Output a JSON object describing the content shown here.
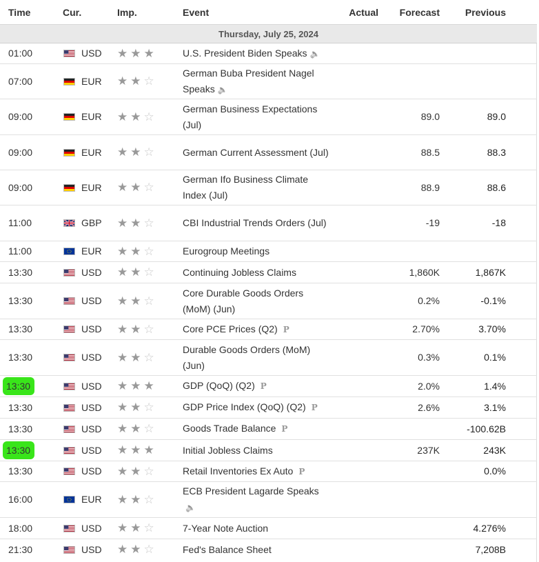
{
  "headers": {
    "time": "Time",
    "cur": "Cur.",
    "imp": "Imp.",
    "event": "Event",
    "actual": "Actual",
    "forecast": "Forecast",
    "previous": "Previous"
  },
  "day": "Thursday, July 25, 2024",
  "highlight_color": "#39e51a",
  "rows": [
    {
      "time": "01:00",
      "cur": "USD",
      "flag": "us-flag-icon",
      "stars": 3,
      "event": "U.S. President Biden Speaks",
      "icon": "speaker-icon",
      "actual": "",
      "forecast": "",
      "previous": "",
      "h": 30
    },
    {
      "time": "07:00",
      "cur": "EUR",
      "flag": "de-flag-icon",
      "stars": 2,
      "event": "German Buba President Nagel Speaks",
      "icon": "speaker-icon",
      "actual": "",
      "forecast": "",
      "previous": "",
      "h": 51
    },
    {
      "time": "09:00",
      "cur": "EUR",
      "flag": "de-flag-icon",
      "stars": 2,
      "event": "German Business Expectations (Jul)",
      "icon": "",
      "actual": "",
      "forecast": "89.0",
      "previous": "89.0",
      "h": 52
    },
    {
      "time": "09:00",
      "cur": "EUR",
      "flag": "de-flag-icon",
      "stars": 2,
      "event": "German Current Assessment (Jul)",
      "icon": "",
      "actual": "",
      "forecast": "88.5",
      "previous": "88.3",
      "h": 51
    },
    {
      "time": "09:00",
      "cur": "EUR",
      "flag": "de-flag-icon",
      "stars": 2,
      "event": "German Ifo Business Climate Index (Jul)",
      "icon": "",
      "actual": "",
      "forecast": "88.9",
      "previous": "88.6",
      "h": 51
    },
    {
      "time": "11:00",
      "cur": "GBP",
      "flag": "gb-flag-icon",
      "stars": 2,
      "event": "CBI Industrial Trends Orders (Jul)",
      "icon": "",
      "actual": "",
      "forecast": "-19",
      "previous": "-18",
      "h": 52
    },
    {
      "time": "11:00",
      "cur": "EUR",
      "flag": "eu-flag-icon",
      "stars": 2,
      "event": "Eurogroup Meetings",
      "icon": "",
      "actual": "",
      "forecast": "",
      "previous": "",
      "h": 30
    },
    {
      "time": "13:30",
      "cur": "USD",
      "flag": "us-flag-icon",
      "stars": 2,
      "event": "Continuing Jobless Claims",
      "icon": "",
      "actual": "",
      "forecast": "1,860K",
      "previous": "1,867K",
      "h": 31
    },
    {
      "time": "13:30",
      "cur": "USD",
      "flag": "us-flag-icon",
      "stars": 2,
      "event": "Core Durable Goods Orders (MoM) (Jun)",
      "icon": "",
      "actual": "",
      "forecast": "0.2%",
      "previous": "-0.1%",
      "h": 52
    },
    {
      "time": "13:30",
      "cur": "USD",
      "flag": "us-flag-icon",
      "stars": 2,
      "event": "Core PCE Prices (Q2)",
      "icon": "prelim-icon",
      "actual": "",
      "forecast": "2.70%",
      "previous": "3.70%",
      "h": 30
    },
    {
      "time": "13:30",
      "cur": "USD",
      "flag": "us-flag-icon",
      "stars": 2,
      "event": "Durable Goods Orders (MoM) (Jun)",
      "icon": "",
      "actual": "",
      "forecast": "0.3%",
      "previous": "0.1%",
      "h": 52
    },
    {
      "time": "13:30",
      "cur": "USD",
      "flag": "us-flag-icon",
      "stars": 3,
      "event": "GDP (QoQ) (Q2)",
      "icon": "prelim-icon",
      "actual": "",
      "forecast": "2.0%",
      "previous": "1.4%",
      "h": 31,
      "highlight": true
    },
    {
      "time": "13:30",
      "cur": "USD",
      "flag": "us-flag-icon",
      "stars": 2,
      "event": "GDP Price Index (QoQ) (Q2)",
      "icon": "prelim-icon",
      "actual": "",
      "forecast": "2.6%",
      "previous": "3.1%",
      "h": 31
    },
    {
      "time": "13:30",
      "cur": "USD",
      "flag": "us-flag-icon",
      "stars": 2,
      "event": "Goods Trade Balance",
      "icon": "prelim-icon",
      "actual": "",
      "forecast": "",
      "previous": "-100.62B",
      "h": 31
    },
    {
      "time": "13:30",
      "cur": "USD",
      "flag": "us-flag-icon",
      "stars": 3,
      "event": "Initial Jobless Claims",
      "icon": "",
      "actual": "",
      "forecast": "237K",
      "previous": "243K",
      "h": 31,
      "highlight": true
    },
    {
      "time": "13:30",
      "cur": "USD",
      "flag": "us-flag-icon",
      "stars": 2,
      "event": "Retail Inventories Ex Auto",
      "icon": "prelim-icon",
      "actual": "",
      "forecast": "",
      "previous": "0.0%",
      "h": 30
    },
    {
      "time": "16:00",
      "cur": "EUR",
      "flag": "eu-flag-icon",
      "stars": 2,
      "event": "ECB President Lagarde Speaks",
      "icon": "speaker-icon",
      "actual": "",
      "forecast": "",
      "previous": "",
      "h": 52
    },
    {
      "time": "18:00",
      "cur": "USD",
      "flag": "us-flag-icon",
      "stars": 2,
      "event": "7-Year Note Auction",
      "icon": "",
      "actual": "",
      "forecast": "",
      "previous": "4.276%",
      "h": 31
    },
    {
      "time": "21:30",
      "cur": "USD",
      "flag": "us-flag-icon",
      "stars": 2,
      "event": "Fed's Balance Sheet",
      "icon": "",
      "actual": "",
      "forecast": "",
      "previous": "7,208B",
      "h": 31
    }
  ]
}
